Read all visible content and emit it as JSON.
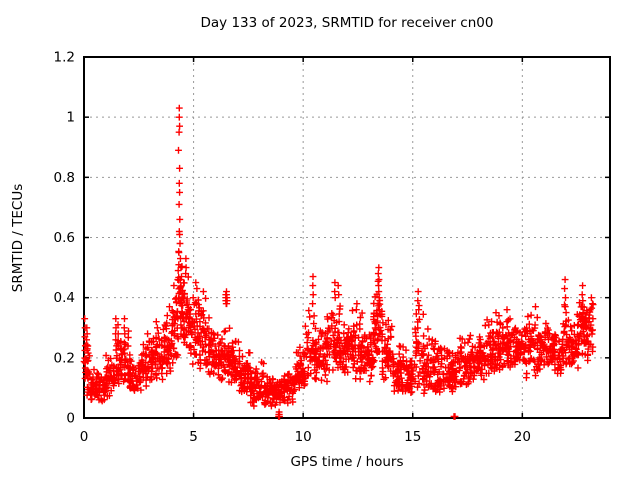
{
  "chart_data": {
    "type": "scatter",
    "title": "Day 133 of 2023, SRMTID for receiver cn00",
    "xlabel": "GPS time / hours",
    "ylabel": "SRMTID / TECUs",
    "xlim": [
      0,
      24
    ],
    "ylim": [
      0,
      1.2
    ],
    "xticks": [
      0,
      5,
      10,
      15,
      20
    ],
    "xtick_labels": [
      "0",
      "5",
      "10",
      "15",
      "20"
    ],
    "yticks": [
      0,
      0.2,
      0.4,
      0.6,
      0.8,
      1,
      1.2
    ],
    "ytick_labels": [
      "0",
      "0.2",
      "0.4",
      "0.6",
      "0.8",
      "1",
      "1.2"
    ],
    "grid": true,
    "legend": "none",
    "marker": "plus",
    "marker_color": "#ff0000",
    "grid_color": "#999999",
    "border_color": "#000000",
    "points": [
      [
        0.03,
        0.33
      ],
      [
        0.05,
        0.3
      ],
      [
        0.04,
        0.27
      ],
      [
        0.06,
        0.24
      ],
      [
        0.13,
        0.3
      ],
      [
        0.14,
        0.28
      ],
      [
        0.12,
        0.26
      ],
      [
        0.15,
        0.23
      ],
      [
        1.45,
        0.33
      ],
      [
        1.46,
        0.3
      ],
      [
        1.44,
        0.28
      ],
      [
        1.45,
        0.26
      ],
      [
        1.55,
        0.31
      ],
      [
        1.56,
        0.28
      ],
      [
        1.85,
        0.33
      ],
      [
        1.84,
        0.3
      ],
      [
        1.86,
        0.28
      ],
      [
        1.85,
        0.25
      ],
      [
        2.9,
        0.28
      ],
      [
        3.3,
        0.32
      ],
      [
        3.35,
        0.3
      ],
      [
        3.9,
        0.37
      ],
      [
        4.1,
        0.44
      ],
      [
        4.35,
        1.03
      ],
      [
        4.35,
        1.0
      ],
      [
        4.36,
        0.97
      ],
      [
        4.34,
        0.95
      ],
      [
        4.31,
        0.89
      ],
      [
        4.36,
        0.83
      ],
      [
        4.35,
        0.78
      ],
      [
        4.36,
        0.75
      ],
      [
        4.34,
        0.71
      ],
      [
        4.37,
        0.66
      ],
      [
        4.35,
        0.62
      ],
      [
        4.36,
        0.61
      ],
      [
        4.38,
        0.58
      ],
      [
        4.33,
        0.55
      ],
      [
        4.4,
        0.53
      ],
      [
        4.42,
        0.5
      ],
      [
        4.3,
        0.49
      ],
      [
        4.45,
        0.47
      ],
      [
        4.28,
        0.46
      ],
      [
        4.65,
        0.53
      ],
      [
        4.66,
        0.5
      ],
      [
        4.64,
        0.48
      ],
      [
        5.1,
        0.45
      ],
      [
        5.15,
        0.43
      ],
      [
        5.45,
        0.42
      ],
      [
        6.47,
        0.39
      ],
      [
        6.49,
        0.39
      ],
      [
        6.51,
        0.39
      ],
      [
        6.48,
        0.4
      ],
      [
        6.5,
        0.4
      ],
      [
        6.52,
        0.4
      ],
      [
        6.49,
        0.38
      ],
      [
        6.51,
        0.38
      ],
      [
        6.5,
        0.41
      ],
      [
        6.47,
        0.41
      ],
      [
        6.5,
        0.42
      ],
      [
        6.53,
        0.39
      ],
      [
        7.75,
        0.04
      ],
      [
        8.3,
        0.05
      ],
      [
        8.55,
        0.04
      ],
      [
        8.88,
        0.005
      ],
      [
        8.9,
        0.005
      ],
      [
        8.92,
        0.005
      ],
      [
        8.89,
        0.012
      ],
      [
        8.91,
        0.012
      ],
      [
        8.9,
        0.02
      ],
      [
        9.3,
        0.05
      ],
      [
        10.45,
        0.47
      ],
      [
        10.44,
        0.44
      ],
      [
        10.46,
        0.41
      ],
      [
        10.43,
        0.38
      ],
      [
        11.45,
        0.45
      ],
      [
        11.44,
        0.42
      ],
      [
        11.46,
        0.4
      ],
      [
        11.6,
        0.44
      ],
      [
        11.62,
        0.41
      ],
      [
        12.45,
        0.38
      ],
      [
        12.43,
        0.36
      ],
      [
        13.45,
        0.5
      ],
      [
        13.43,
        0.48
      ],
      [
        13.46,
        0.46
      ],
      [
        13.44,
        0.44
      ],
      [
        13.45,
        0.42
      ],
      [
        13.47,
        0.4
      ],
      [
        13.42,
        0.38
      ],
      [
        13.48,
        0.36
      ],
      [
        13.4,
        0.34
      ],
      [
        15.25,
        0.42
      ],
      [
        15.23,
        0.39
      ],
      [
        15.27,
        0.36
      ],
      [
        16.88,
        0.005
      ],
      [
        16.93,
        0.005
      ],
      [
        18.8,
        0.35
      ],
      [
        19.3,
        0.36
      ],
      [
        20.6,
        0.37
      ],
      [
        21.95,
        0.46
      ],
      [
        21.93,
        0.43
      ],
      [
        21.97,
        0.4
      ],
      [
        21.94,
        0.37
      ],
      [
        22.75,
        0.44
      ],
      [
        22.73,
        0.41
      ],
      [
        22.76,
        0.39
      ],
      [
        22.74,
        0.37
      ],
      [
        22.77,
        0.35
      ],
      [
        22.72,
        0.33
      ],
      [
        22.75,
        0.31
      ],
      [
        22.78,
        0.3
      ],
      [
        23.15,
        0.4
      ],
      [
        23.2,
        0.38
      ],
      [
        23.1,
        0.36
      ],
      [
        23.22,
        0.33
      ]
    ],
    "dense_bands_fields": [
      "x_start",
      "x_end",
      "y_min",
      "y_max",
      "count"
    ],
    "dense_bands": [
      [
        0.0,
        0.3,
        0.07,
        0.28,
        26
      ],
      [
        0.3,
        1.0,
        0.05,
        0.18,
        60
      ],
      [
        1.0,
        1.4,
        0.07,
        0.24,
        35
      ],
      [
        1.4,
        1.7,
        0.08,
        0.28,
        28
      ],
      [
        1.7,
        2.1,
        0.1,
        0.3,
        36
      ],
      [
        2.1,
        2.6,
        0.08,
        0.22,
        42
      ],
      [
        2.6,
        3.1,
        0.1,
        0.27,
        45
      ],
      [
        3.1,
        3.6,
        0.12,
        0.3,
        45
      ],
      [
        3.6,
        4.0,
        0.14,
        0.36,
        40
      ],
      [
        4.0,
        4.3,
        0.18,
        0.46,
        35
      ],
      [
        4.3,
        4.55,
        0.26,
        0.58,
        40
      ],
      [
        4.55,
        4.8,
        0.22,
        0.54,
        30
      ],
      [
        4.8,
        5.2,
        0.17,
        0.45,
        40
      ],
      [
        5.2,
        5.6,
        0.15,
        0.42,
        40
      ],
      [
        5.6,
        6.1,
        0.13,
        0.35,
        48
      ],
      [
        6.1,
        6.6,
        0.12,
        0.3,
        45
      ],
      [
        6.6,
        7.1,
        0.1,
        0.3,
        48
      ],
      [
        7.1,
        7.6,
        0.07,
        0.25,
        48
      ],
      [
        7.6,
        8.2,
        0.05,
        0.2,
        55
      ],
      [
        8.2,
        8.7,
        0.04,
        0.18,
        45
      ],
      [
        8.7,
        9.1,
        0.04,
        0.15,
        35
      ],
      [
        9.1,
        9.6,
        0.05,
        0.18,
        45
      ],
      [
        9.6,
        10.1,
        0.08,
        0.25,
        48
      ],
      [
        10.1,
        10.6,
        0.12,
        0.38,
        45
      ],
      [
        10.6,
        11.1,
        0.12,
        0.3,
        48
      ],
      [
        11.1,
        11.7,
        0.15,
        0.42,
        55
      ],
      [
        11.7,
        12.2,
        0.14,
        0.34,
        48
      ],
      [
        12.2,
        12.7,
        0.12,
        0.36,
        48
      ],
      [
        12.7,
        13.2,
        0.12,
        0.3,
        48
      ],
      [
        13.2,
        13.6,
        0.18,
        0.48,
        45
      ],
      [
        13.6,
        14.1,
        0.12,
        0.34,
        45
      ],
      [
        14.1,
        14.7,
        0.08,
        0.25,
        55
      ],
      [
        14.7,
        15.1,
        0.08,
        0.22,
        38
      ],
      [
        15.1,
        15.5,
        0.1,
        0.4,
        38
      ],
      [
        15.5,
        16.1,
        0.08,
        0.3,
        55
      ],
      [
        16.1,
        16.7,
        0.08,
        0.25,
        55
      ],
      [
        16.7,
        17.1,
        0.08,
        0.22,
        36
      ],
      [
        17.1,
        17.7,
        0.1,
        0.28,
        55
      ],
      [
        17.7,
        18.3,
        0.12,
        0.32,
        55
      ],
      [
        18.3,
        19.0,
        0.14,
        0.35,
        65
      ],
      [
        19.0,
        19.6,
        0.15,
        0.35,
        55
      ],
      [
        19.6,
        20.1,
        0.15,
        0.32,
        46
      ],
      [
        20.1,
        20.7,
        0.13,
        0.36,
        55
      ],
      [
        20.7,
        21.3,
        0.15,
        0.33,
        55
      ],
      [
        21.3,
        21.8,
        0.14,
        0.34,
        46
      ],
      [
        21.8,
        22.1,
        0.17,
        0.44,
        30
      ],
      [
        22.1,
        22.6,
        0.15,
        0.36,
        46
      ],
      [
        22.6,
        22.9,
        0.2,
        0.42,
        30
      ],
      [
        22.9,
        23.25,
        0.18,
        0.4,
        32
      ]
    ]
  }
}
